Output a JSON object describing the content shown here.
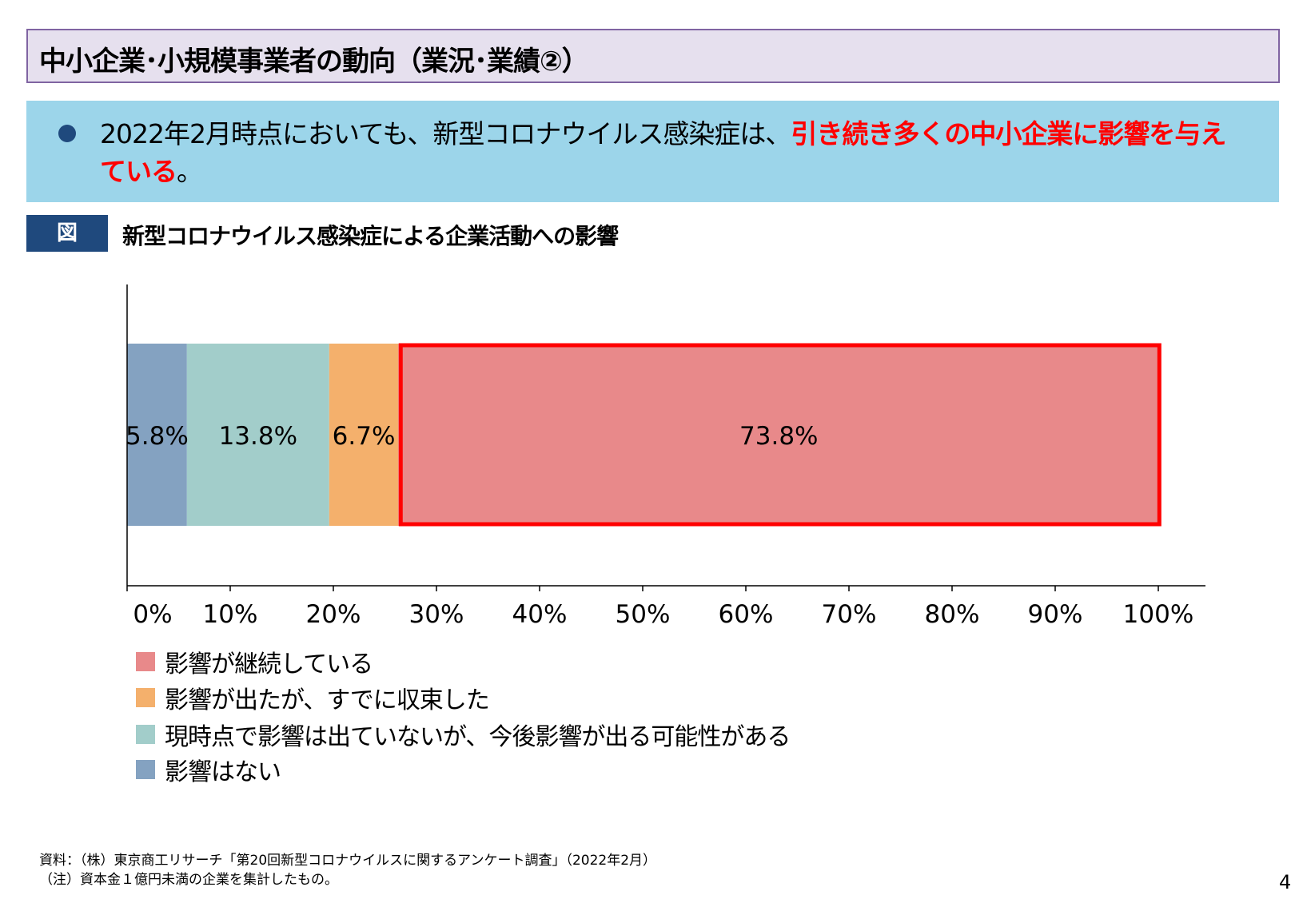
{
  "header": {
    "title": "中小企業･小規模事業者の動向（業況･業績②）"
  },
  "summary": {
    "text": "2022年2月時点においても、新型コロナウイルス感染症は、",
    "highlight": "引き続き多くの中小企業に影響を与えている",
    "end": "。"
  },
  "figure": {
    "label": "図",
    "title": "新型コロナウイルス感染症による企業活動への影響"
  },
  "chart_data": {
    "type": "bar",
    "orientation": "horizontal-stacked-100",
    "categories": [
      ""
    ],
    "series": [
      {
        "name": "影響はない",
        "values": [
          5.8
        ],
        "label": "5.8%",
        "color": "#84a2c1"
      },
      {
        "name": "現時点で影響は出ていないが、今後影響が出る可能性がある",
        "values": [
          13.8
        ],
        "label": "13.8%",
        "color": "#a2cdca"
      },
      {
        "name": "影響が出たが、すでに収束した",
        "values": [
          6.7
        ],
        "label": "6.7%",
        "color": "#f4b06c"
      },
      {
        "name": "影響が継続している",
        "values": [
          73.8
        ],
        "label": "73.8%",
        "color": "#e8898a",
        "highlighted": true
      }
    ],
    "xlim": [
      0,
      100
    ],
    "xticks": [
      "0%",
      "10%",
      "20%",
      "30%",
      "40%",
      "50%",
      "60%",
      "70%",
      "80%",
      "90%",
      "100%"
    ],
    "grid": false,
    "legend_position": "bottom-left",
    "highlight_color": "#ff0000"
  },
  "legend": [
    "影響が継続している",
    "影響が出たが、すでに収束した",
    "現時点で影響は出ていないが、今後影響が出る可能性がある",
    "影響はない"
  ],
  "footnotes": {
    "source": "資料：（株）東京商工リサーチ「第20回新型コロナウイルスに関するアンケート調査」（2022年2月）",
    "note": "（注）資本金１億円未満の企業を集計したもの。"
  },
  "page_number": "4"
}
